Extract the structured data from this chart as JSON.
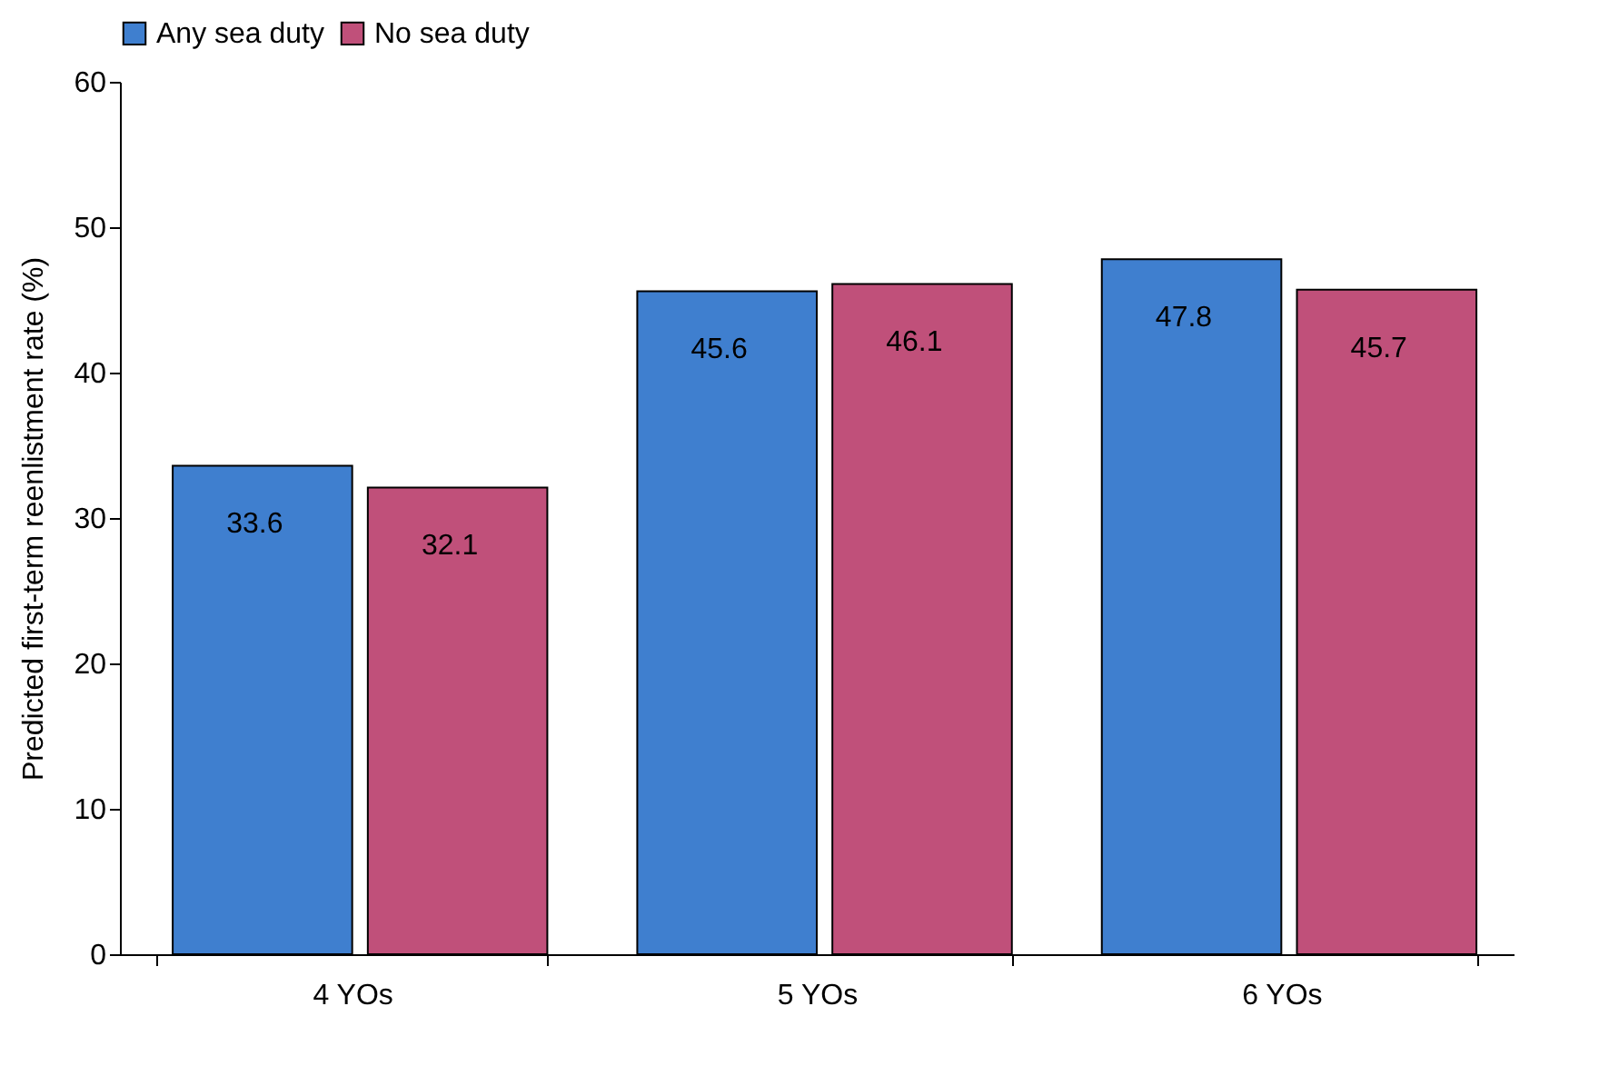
{
  "chart_data": {
    "type": "bar",
    "ylabel": "Predicted first-term reenlistment rate (%)",
    "categories": [
      "4 YOs",
      "5 YOs",
      "6 YOs"
    ],
    "series": [
      {
        "name": "Any sea duty",
        "color": "#3f7fcf",
        "values": [
          33.6,
          45.6,
          47.8
        ]
      },
      {
        "name": "No sea duty",
        "color": "#c0507a",
        "values": [
          32.1,
          46.1,
          45.7
        ]
      }
    ],
    "ylim": [
      0,
      60
    ],
    "yticks": [
      0,
      10,
      20,
      30,
      40,
      50,
      60
    ],
    "grid": false,
    "legend": "top",
    "data_labels": true
  }
}
